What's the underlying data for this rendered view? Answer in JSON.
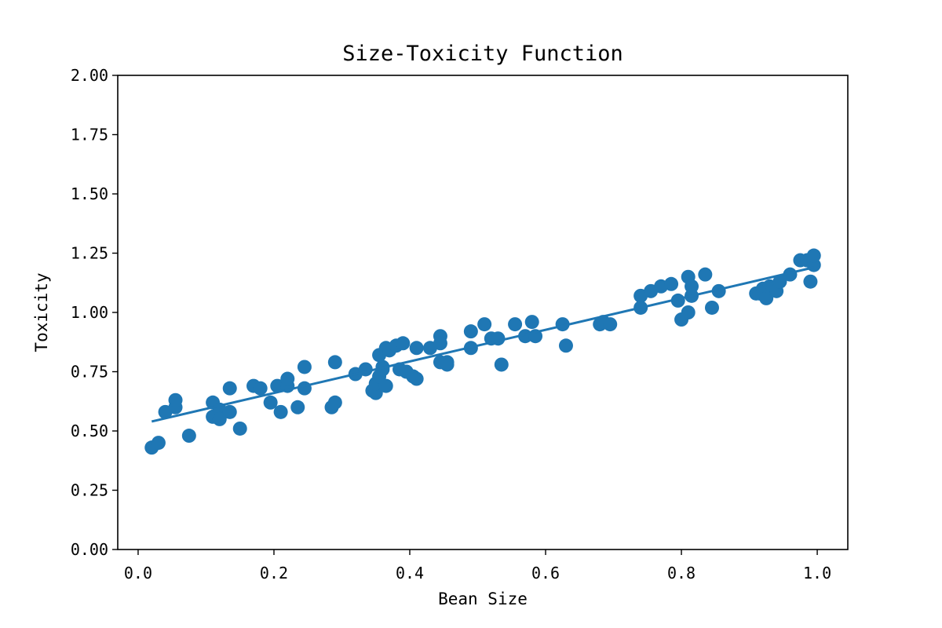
{
  "chart_data": {
    "type": "scatter",
    "title": "Size-Toxicity Function",
    "xlabel": "Bean Size",
    "ylabel": "Toxicity",
    "xlim": [
      -0.03,
      1.045
    ],
    "ylim": [
      0.0,
      2.0
    ],
    "xticks": [
      0.0,
      0.2,
      0.4,
      0.6,
      0.8,
      1.0
    ],
    "xtick_labels": [
      "0.0",
      "0.2",
      "0.4",
      "0.6",
      "0.8",
      "1.0"
    ],
    "yticks": [
      0.0,
      0.25,
      0.5,
      0.75,
      1.0,
      1.25,
      1.5,
      1.75,
      2.0
    ],
    "ytick_labels": [
      "0.00",
      "0.25",
      "0.50",
      "0.75",
      "1.00",
      "1.25",
      "1.50",
      "1.75",
      "2.00"
    ],
    "grid": false,
    "color": "#1f77b4",
    "series": [
      {
        "type": "scatter",
        "points": [
          [
            0.02,
            0.43
          ],
          [
            0.03,
            0.45
          ],
          [
            0.04,
            0.58
          ],
          [
            0.055,
            0.6
          ],
          [
            0.055,
            0.63
          ],
          [
            0.075,
            0.48
          ],
          [
            0.11,
            0.62
          ],
          [
            0.11,
            0.56
          ],
          [
            0.12,
            0.59
          ],
          [
            0.12,
            0.55
          ],
          [
            0.135,
            0.68
          ],
          [
            0.135,
            0.58
          ],
          [
            0.15,
            0.51
          ],
          [
            0.17,
            0.69
          ],
          [
            0.18,
            0.68
          ],
          [
            0.195,
            0.62
          ],
          [
            0.205,
            0.69
          ],
          [
            0.21,
            0.58
          ],
          [
            0.22,
            0.69
          ],
          [
            0.22,
            0.72
          ],
          [
            0.235,
            0.6
          ],
          [
            0.245,
            0.68
          ],
          [
            0.245,
            0.77
          ],
          [
            0.285,
            0.6
          ],
          [
            0.29,
            0.62
          ],
          [
            0.29,
            0.79
          ],
          [
            0.32,
            0.74
          ],
          [
            0.335,
            0.76
          ],
          [
            0.345,
            0.67
          ],
          [
            0.35,
            0.66
          ],
          [
            0.35,
            0.7
          ],
          [
            0.355,
            0.73
          ],
          [
            0.355,
            0.82
          ],
          [
            0.36,
            0.77
          ],
          [
            0.36,
            0.76
          ],
          [
            0.365,
            0.85
          ],
          [
            0.365,
            0.69
          ],
          [
            0.37,
            0.84
          ],
          [
            0.38,
            0.86
          ],
          [
            0.385,
            0.76
          ],
          [
            0.39,
            0.87
          ],
          [
            0.395,
            0.75
          ],
          [
            0.405,
            0.73
          ],
          [
            0.41,
            0.72
          ],
          [
            0.41,
            0.85
          ],
          [
            0.43,
            0.85
          ],
          [
            0.445,
            0.9
          ],
          [
            0.445,
            0.87
          ],
          [
            0.445,
            0.79
          ],
          [
            0.455,
            0.79
          ],
          [
            0.455,
            0.78
          ],
          [
            0.49,
            0.92
          ],
          [
            0.49,
            0.85
          ],
          [
            0.51,
            0.95
          ],
          [
            0.52,
            0.89
          ],
          [
            0.53,
            0.89
          ],
          [
            0.535,
            0.78
          ],
          [
            0.555,
            0.95
          ],
          [
            0.57,
            0.9
          ],
          [
            0.58,
            0.96
          ],
          [
            0.585,
            0.9
          ],
          [
            0.625,
            0.95
          ],
          [
            0.63,
            0.86
          ],
          [
            0.68,
            0.95
          ],
          [
            0.685,
            0.96
          ],
          [
            0.695,
            0.95
          ],
          [
            0.74,
            1.07
          ],
          [
            0.74,
            1.02
          ],
          [
            0.755,
            1.09
          ],
          [
            0.77,
            1.11
          ],
          [
            0.785,
            1.12
          ],
          [
            0.795,
            1.05
          ],
          [
            0.8,
            0.97
          ],
          [
            0.81,
            1.0
          ],
          [
            0.81,
            1.15
          ],
          [
            0.815,
            1.11
          ],
          [
            0.815,
            1.07
          ],
          [
            0.835,
            1.16
          ],
          [
            0.845,
            1.02
          ],
          [
            0.855,
            1.09
          ],
          [
            0.91,
            1.08
          ],
          [
            0.915,
            1.08
          ],
          [
            0.92,
            1.1
          ],
          [
            0.925,
            1.06
          ],
          [
            0.93,
            1.11
          ],
          [
            0.935,
            1.1
          ],
          [
            0.94,
            1.09
          ],
          [
            0.945,
            1.13
          ],
          [
            0.96,
            1.16
          ],
          [
            0.975,
            1.22
          ],
          [
            0.985,
            1.22
          ],
          [
            0.99,
            1.13
          ],
          [
            0.995,
            1.2
          ],
          [
            0.995,
            1.24
          ]
        ]
      },
      {
        "type": "line",
        "x": [
          0.02,
          0.995
        ],
        "y": [
          0.54,
          1.19
        ]
      }
    ]
  }
}
